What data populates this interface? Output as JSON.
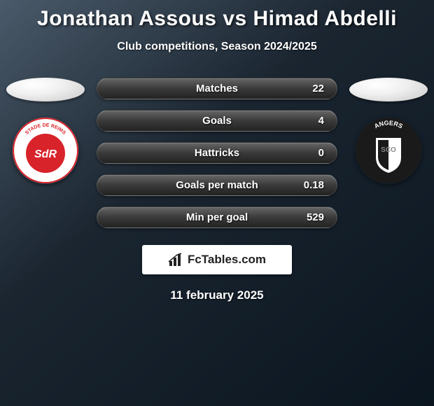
{
  "header": {
    "title": "Jonathan Assous vs Himad Abdelli",
    "subtitle": "Club competitions, Season 2024/2025"
  },
  "left_team": {
    "name": "Stade de Reims",
    "badge": {
      "bg_color": "#ffffff",
      "inner_color": "#d8232a",
      "text_top": "STADE DE REIMS",
      "text_center": "SdR",
      "text_color": "#ffffff",
      "ring_color": "#d8232a"
    }
  },
  "right_team": {
    "name": "Angers SCO",
    "badge": {
      "bg_color": "#1a1a1a",
      "shield_outer": "#ffffff",
      "shield_left": "#1a1a1a",
      "shield_right": "#ffffff",
      "text_top": "ANGERS",
      "text_bottom": "SCO",
      "text_color": "#ffffff"
    }
  },
  "stats": [
    {
      "label": "Matches",
      "value": "22"
    },
    {
      "label": "Goals",
      "value": "4"
    },
    {
      "label": "Hattricks",
      "value": "0"
    },
    {
      "label": "Goals per match",
      "value": "0.18"
    },
    {
      "label": "Min per goal",
      "value": "529"
    }
  ],
  "watermark": {
    "text": "FcTables.com",
    "icon_color": "#222222"
  },
  "date": "11 february 2025",
  "styling": {
    "pill_height": 31,
    "pill_gap": 15,
    "pill_label_fontsize": 15,
    "pill_label_color": "#ffffff",
    "pill_bg_gradient": [
      "#666666",
      "#3a3a3a",
      "#222222"
    ],
    "body_bg_gradient": [
      "#4a5a6a",
      "#1a2530",
      "#0a1520"
    ],
    "title_fontsize": 30,
    "title_color": "#ffffff",
    "subtitle_fontsize": 16,
    "date_fontsize": 17,
    "ellipse_size": [
      112,
      34
    ],
    "badge_diameter": 96
  }
}
